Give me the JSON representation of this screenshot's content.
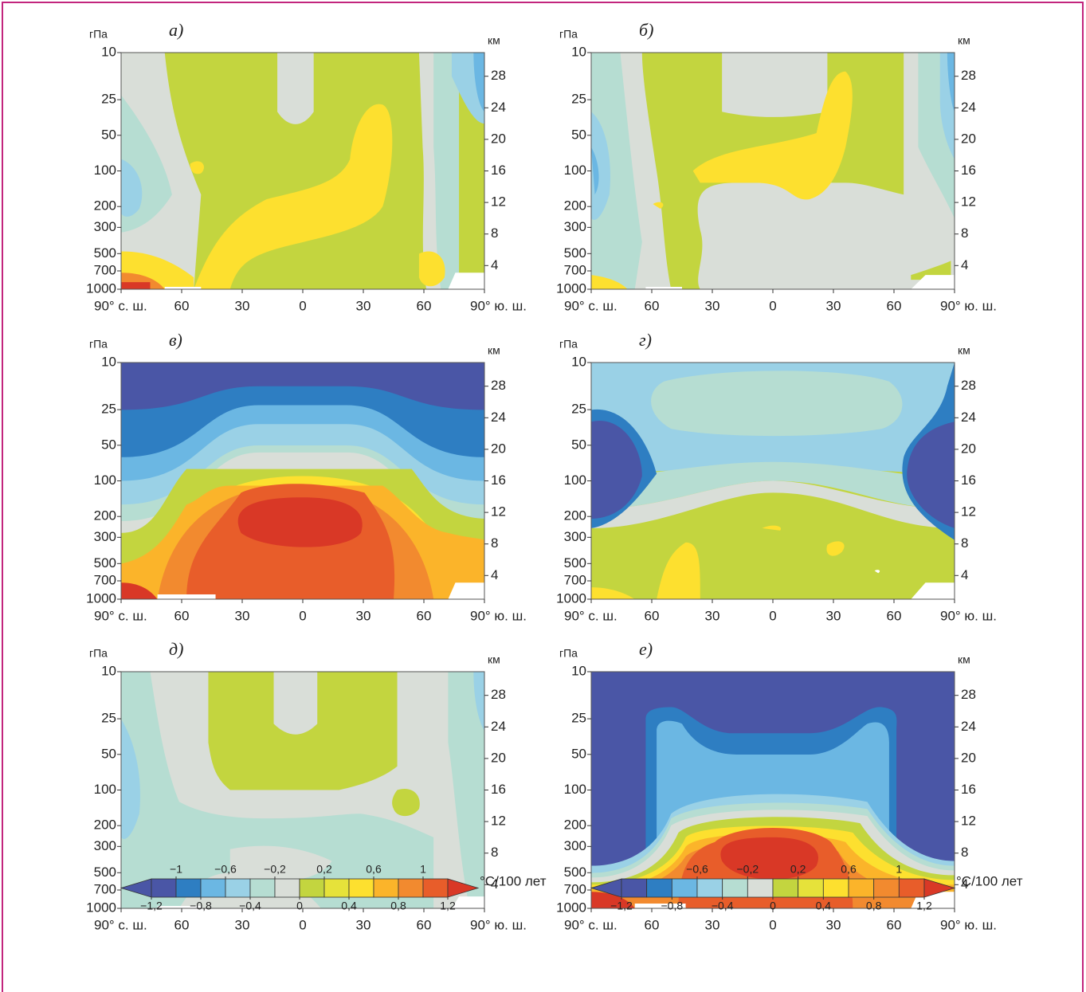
{
  "chart_data": [
    {
      "type": "contour",
      "label": "а)",
      "y_label": "гПа",
      "y2_label": "км",
      "xlim": [
        -90,
        90
      ],
      "ylim": [
        1000,
        10
      ],
      "log_y": true,
      "yticks": [
        10,
        25,
        50,
        100,
        200,
        300,
        500,
        700,
        1000
      ],
      "y2lim": [
        1,
        31
      ],
      "y2ticks": [
        4,
        8,
        12,
        16,
        20,
        24,
        28
      ],
      "xticks": [
        {
          "value": -90,
          "label": "90° с. ш."
        },
        {
          "value": -60,
          "label": "60"
        },
        {
          "value": -30,
          "label": "30"
        },
        0,
        30,
        60,
        {
          "value": 90,
          "label": "90° ю. ш."
        }
      ]
    },
    {
      "type": "contour",
      "label": "б)",
      "y_label": "гПа",
      "y2_label": "км",
      "xlim": [
        -90,
        90
      ],
      "ylim": [
        1000,
        10
      ],
      "log_y": true,
      "yticks": [
        10,
        25,
        50,
        100,
        200,
        300,
        500,
        700,
        1000
      ],
      "y2lim": [
        1,
        31
      ],
      "y2ticks": [
        4,
        8,
        12,
        16,
        20,
        24,
        28
      ],
      "xticks": [
        {
          "value": -90,
          "label": "90° с. ш."
        },
        {
          "value": -60,
          "label": "60"
        },
        {
          "value": -30,
          "label": "30"
        },
        0,
        30,
        60,
        {
          "value": 90,
          "label": "90° ю. ш."
        }
      ]
    },
    {
      "type": "contour",
      "label": "в)",
      "y_label": "гПа",
      "y2_label": "км",
      "xlim": [
        -90,
        90
      ],
      "ylim": [
        1000,
        10
      ],
      "log_y": true,
      "yticks": [
        10,
        25,
        50,
        100,
        200,
        300,
        500,
        700,
        1000
      ],
      "y2lim": [
        1,
        31
      ],
      "y2ticks": [
        4,
        8,
        12,
        16,
        20,
        24,
        28
      ],
      "xticks": [
        {
          "value": -90,
          "label": "90° с. ш."
        },
        {
          "value": -60,
          "label": "60"
        },
        {
          "value": -30,
          "label": "30"
        },
        0,
        30,
        60,
        {
          "value": 90,
          "label": "90° ю. ш."
        }
      ]
    },
    {
      "type": "contour",
      "label": "г)",
      "y_label": "гПа",
      "y2_label": "км",
      "xlim": [
        -90,
        90
      ],
      "ylim": [
        1000,
        10
      ],
      "log_y": true,
      "yticks": [
        10,
        25,
        50,
        100,
        200,
        300,
        500,
        700,
        1000
      ],
      "y2lim": [
        1,
        31
      ],
      "y2ticks": [
        4,
        8,
        12,
        16,
        20,
        24,
        28
      ],
      "xticks": [
        {
          "value": -90,
          "label": "90° с. ш."
        },
        {
          "value": -60,
          "label": "60"
        },
        {
          "value": -30,
          "label": "30"
        },
        0,
        30,
        60,
        {
          "value": 90,
          "label": "90° ю. ш."
        }
      ]
    },
    {
      "type": "contour",
      "label": "д)",
      "y_label": "гПа",
      "y2_label": "км",
      "xlim": [
        -90,
        90
      ],
      "ylim": [
        1000,
        10
      ],
      "log_y": true,
      "yticks": [
        10,
        25,
        50,
        100,
        200,
        300,
        500,
        700,
        1000
      ],
      "y2lim": [
        1,
        31
      ],
      "y2ticks": [
        4,
        8,
        12,
        16,
        20,
        24,
        28
      ],
      "xticks": [
        {
          "value": -90,
          "label": "90° с. ш."
        },
        {
          "value": -60,
          "label": "60"
        },
        {
          "value": -30,
          "label": "30"
        },
        0,
        30,
        60,
        {
          "value": 90,
          "label": "90° ю. ш."
        }
      ]
    },
    {
      "type": "contour",
      "label": "е)",
      "y_label": "гПа",
      "y2_label": "км",
      "xlim": [
        -90,
        90
      ],
      "ylim": [
        1000,
        10
      ],
      "log_y": true,
      "yticks": [
        10,
        25,
        50,
        100,
        200,
        300,
        500,
        700,
        1000
      ],
      "y2lim": [
        1,
        31
      ],
      "y2ticks": [
        4,
        8,
        12,
        16,
        20,
        24,
        28
      ],
      "xticks": [
        {
          "value": -90,
          "label": "90° с. ш."
        },
        {
          "value": -60,
          "label": "60"
        },
        {
          "value": -30,
          "label": "30"
        },
        0,
        30,
        60,
        {
          "value": 90,
          "label": "90° ю. ш."
        }
      ]
    }
  ],
  "colorbars": [
    {
      "unit": "°C/100 лет",
      "lim": [
        -1.2,
        1.2
      ],
      "colors": [
        "#4a56a6",
        "#4a56a6",
        "#2e7ec2",
        "#6bb7e3",
        "#9ad1e6",
        "#b6ddd2",
        "#d9ded8",
        "#c3d53f",
        "#e6e23a",
        "#fde02f",
        "#fbb42a",
        "#f28a2f",
        "#e85d2a",
        "#d93826"
      ],
      "top_ticks": [
        {
          "value": -1,
          "label": "−1"
        },
        {
          "value": -0.6,
          "label": "−0,6"
        },
        {
          "value": -0.2,
          "label": "−0,2"
        },
        {
          "value": 0.2,
          "label": "0,2"
        },
        {
          "value": 0.6,
          "label": "0,6"
        },
        1
      ],
      "bottom_ticks": [
        {
          "value": -1.2,
          "label": "−1,2"
        },
        {
          "value": -0.8,
          "label": "−0,8"
        },
        {
          "value": -0.4,
          "label": "−0,4"
        },
        0,
        {
          "value": 0.4,
          "label": "0,4"
        },
        {
          "value": 0.8,
          "label": "0,8"
        },
        {
          "value": 1.2,
          "label": "1,2"
        }
      ]
    },
    {
      "unit": "°C/100 лет",
      "lim": [
        -1.2,
        1.2
      ],
      "colors": [
        "#4a56a6",
        "#4a56a6",
        "#2e7ec2",
        "#6bb7e3",
        "#9ad1e6",
        "#b6ddd2",
        "#d9ded8",
        "#c3d53f",
        "#e6e23a",
        "#fde02f",
        "#fbb42a",
        "#f28a2f",
        "#e85d2a",
        "#d93826"
      ],
      "top_ticks": [
        {
          "value": -0.6,
          "label": "−0,6"
        },
        {
          "value": -0.2,
          "label": "−0,2"
        },
        {
          "value": 0.2,
          "label": "0,2"
        },
        {
          "value": 0.6,
          "label": "0,6"
        },
        1
      ],
      "bottom_ticks": [
        {
          "value": -1.2,
          "label": "−1,2"
        },
        {
          "value": -0.8,
          "label": "−0,8"
        },
        {
          "value": -0.4,
          "label": "−0,4"
        },
        0,
        {
          "value": 0.4,
          "label": "0,4"
        },
        {
          "value": 0.8,
          "label": "0,8"
        },
        {
          "value": 1.2,
          "label": "1,2"
        }
      ]
    }
  ]
}
